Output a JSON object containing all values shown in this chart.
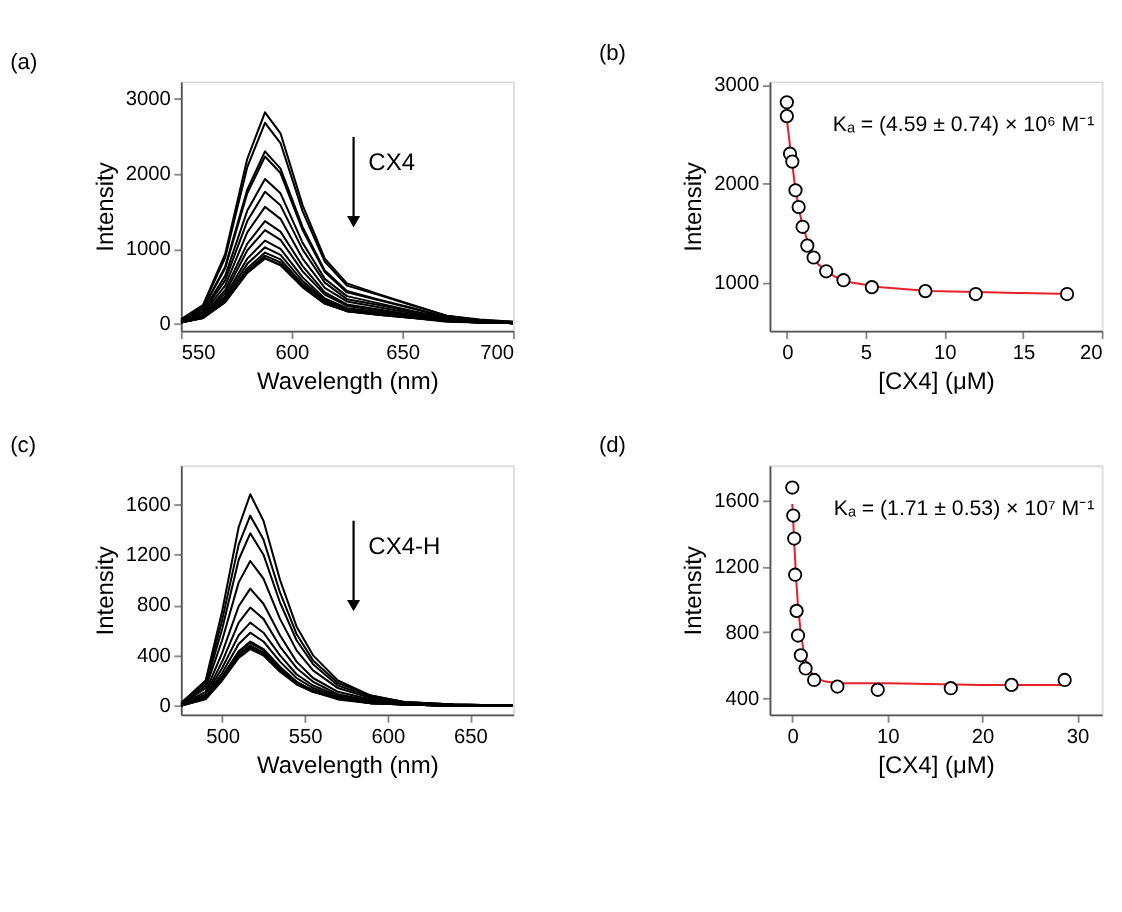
{
  "chart_data": [
    {
      "type": "line",
      "title": "(a)",
      "xlabel": "Wavelength (nm)",
      "ylabel": "Intensity",
      "xlim": [
        550,
        700
      ],
      "ylim": [
        -90,
        3230
      ],
      "xticks": [
        550,
        600,
        650,
        700
      ],
      "yticks": [
        0,
        1000,
        2000,
        3000
      ],
      "x": [
        550,
        560,
        570,
        580,
        588,
        595,
        605,
        615,
        625,
        640,
        655,
        670,
        685,
        700
      ],
      "series": [
        {
          "color": "#000000",
          "values": [
            60,
            250,
            930,
            2200,
            2820,
            2540,
            1580,
            870,
            540,
            390,
            250,
            110,
            60,
            30
          ]
        },
        {
          "color": "#000000",
          "values": [
            50,
            240,
            880,
            2090,
            2680,
            2410,
            1500,
            830,
            510,
            380,
            240,
            110,
            50,
            30
          ]
        },
        {
          "color": "#000000",
          "values": [
            50,
            210,
            760,
            1790,
            2300,
            2070,
            1290,
            710,
            440,
            320,
            210,
            90,
            50,
            20
          ]
        },
        {
          "color": "#000000",
          "values": [
            40,
            200,
            740,
            1740,
            2230,
            2010,
            1250,
            690,
            420,
            310,
            200,
            90,
            40,
            20
          ]
        },
        {
          "color": "#000000",
          "values": [
            40,
            170,
            640,
            1510,
            1930,
            1740,
            1080,
            600,
            370,
            270,
            170,
            80,
            40,
            20
          ]
        },
        {
          "color": "#000000",
          "values": [
            40,
            160,
            580,
            1370,
            1760,
            1580,
            990,
            550,
            330,
            250,
            160,
            70,
            40,
            20
          ]
        },
        {
          "color": "#000000",
          "values": [
            30,
            140,
            510,
            1220,
            1560,
            1400,
            870,
            480,
            300,
            220,
            140,
            60,
            30,
            20
          ]
        },
        {
          "color": "#000000",
          "values": [
            30,
            120,
            450,
            1070,
            1370,
            1230,
            770,
            420,
            260,
            190,
            120,
            50,
            30,
            10
          ]
        },
        {
          "color": "#000000",
          "values": [
            30,
            110,
            410,
            980,
            1250,
            1120,
            700,
            390,
            240,
            180,
            110,
            50,
            30,
            10
          ]
        },
        {
          "color": "#000000",
          "values": [
            20,
            100,
            370,
            870,
            1110,
            1000,
            620,
            340,
            210,
            160,
            100,
            40,
            20,
            10
          ]
        },
        {
          "color": "#000000",
          "values": [
            20,
            90,
            340,
            800,
            1020,
            920,
            570,
            320,
            190,
            140,
            90,
            40,
            20,
            10
          ]
        },
        {
          "color": "#000000",
          "values": [
            20,
            90,
            310,
            740,
            950,
            860,
            530,
            300,
            180,
            130,
            90,
            40,
            20,
            10
          ]
        },
        {
          "color": "#000000",
          "values": [
            20,
            80,
            300,
            710,
            910,
            820,
            510,
            280,
            170,
            130,
            80,
            40,
            20,
            10
          ]
        },
        {
          "color": "#000000",
          "values": [
            20,
            80,
            290,
            690,
            880,
            790,
            490,
            270,
            170,
            120,
            80,
            40,
            20,
            10
          ]
        },
        {
          "color": "#000000",
          "values": [
            20,
            80,
            290,
            680,
            870,
            780,
            490,
            270,
            170,
            120,
            80,
            30,
            20,
            10
          ]
        }
      ],
      "annotations": [
        "CX4"
      ]
    },
    {
      "type": "scatter",
      "title": "(b)",
      "xlabel": "[CX4] (μM)",
      "ylabel": "Intensity",
      "xlim": [
        -1.1,
        20
      ],
      "ylim": [
        510,
        3030
      ],
      "xticks": [
        0,
        5,
        10,
        15,
        20
      ],
      "yticks": [
        1000,
        2000,
        3000
      ],
      "marker": "circle",
      "x": [
        0,
        0,
        0.2,
        0.35,
        0.55,
        0.75,
        1.0,
        1.3,
        1.7,
        2.5,
        3.6,
        5.4,
        8.8,
        12,
        17.8
      ],
      "series": [
        {
          "type": "line",
          "marker": "none",
          "color": "#e8202a",
          "x": [
            0,
            0.25,
            0.5,
            0.75,
            1,
            1.5,
            2,
            3,
            4,
            6,
            9,
            12,
            15,
            18
          ],
          "values": [
            2650,
            2310,
            2000,
            1760,
            1570,
            1330,
            1180,
            1060,
            1000,
            950,
            910,
            900,
            890,
            880
          ]
        },
        {
          "color": "#000000",
          "values": [
            2820,
            2680,
            2300,
            2220,
            1930,
            1760,
            1560,
            1370,
            1250,
            1110,
            1020,
            950,
            910,
            880,
            880
          ]
        }
      ],
      "annotations": [
        "Kₐ = (4.59 ± 0.74) × 10⁶ M⁻¹"
      ]
    },
    {
      "type": "line",
      "title": "(c)",
      "xlabel": "Wavelength (nm)",
      "ylabel": "Intensity",
      "xlim": [
        475,
        676
      ],
      "ylim": [
        -70,
        1910
      ],
      "xticks": [
        500,
        550,
        600,
        650
      ],
      "yticks": [
        0,
        400,
        800,
        1200,
        1600
      ],
      "x": [
        475,
        490,
        500,
        510,
        517,
        525,
        535,
        545,
        555,
        570,
        590,
        610,
        640,
        676
      ],
      "series": [
        {
          "color": "#000000",
          "values": [
            20,
            200,
            750,
            1420,
            1680,
            1470,
            1000,
            630,
            400,
            200,
            80,
            30,
            10,
            0
          ]
        },
        {
          "color": "#000000",
          "values": [
            20,
            180,
            680,
            1280,
            1510,
            1320,
            900,
            570,
            360,
            180,
            80,
            30,
            10,
            0
          ]
        },
        {
          "color": "#000000",
          "values": [
            10,
            160,
            610,
            1160,
            1370,
            1200,
            820,
            520,
            330,
            160,
            70,
            30,
            10,
            0
          ]
        },
        {
          "color": "#000000",
          "values": [
            10,
            140,
            520,
            980,
            1150,
            1010,
            690,
            440,
            280,
            140,
            60,
            20,
            10,
            0
          ]
        },
        {
          "color": "#000000",
          "values": [
            10,
            110,
            420,
            790,
            930,
            810,
            560,
            350,
            220,
            110,
            50,
            20,
            0,
            0
          ]
        },
        {
          "color": "#000000",
          "values": [
            10,
            90,
            350,
            660,
            780,
            690,
            470,
            300,
            190,
            90,
            40,
            20,
            0,
            0
          ]
        },
        {
          "color": "#000000",
          "values": [
            10,
            80,
            300,
            560,
            660,
            580,
            400,
            250,
            160,
            80,
            30,
            10,
            0,
            0
          ]
        },
        {
          "color": "#000000",
          "values": [
            10,
            70,
            260,
            490,
            580,
            510,
            350,
            220,
            140,
            70,
            30,
            10,
            0,
            0
          ]
        },
        {
          "color": "#000000",
          "values": [
            10,
            60,
            230,
            430,
            510,
            450,
            310,
            190,
            120,
            60,
            30,
            10,
            0,
            0
          ]
        },
        {
          "color": "#000000",
          "values": [
            10,
            60,
            230,
            430,
            500,
            440,
            300,
            190,
            120,
            60,
            30,
            10,
            0,
            0
          ]
        },
        {
          "color": "#000000",
          "values": [
            0,
            60,
            220,
            410,
            480,
            420,
            290,
            180,
            120,
            60,
            20,
            10,
            0,
            0
          ]
        },
        {
          "color": "#000000",
          "values": [
            0,
            60,
            210,
            400,
            470,
            420,
            290,
            180,
            110,
            60,
            20,
            10,
            0,
            0
          ]
        },
        {
          "color": "#000000",
          "values": [
            0,
            60,
            210,
            390,
            460,
            400,
            280,
            170,
            110,
            60,
            20,
            10,
            0,
            0
          ]
        },
        {
          "color": "#000000",
          "values": [
            0,
            50,
            200,
            380,
            450,
            400,
            270,
            170,
            110,
            50,
            20,
            10,
            0,
            0
          ]
        }
      ],
      "annotations": [
        "CX4-H"
      ]
    },
    {
      "type": "scatter",
      "title": "(d)",
      "xlabel": "[CX4] (μM)",
      "ylabel": "Intensity",
      "xlim": [
        -2.4,
        32.6
      ],
      "ylim": [
        300,
        1815
      ],
      "xticks": [
        0,
        10,
        20,
        30
      ],
      "yticks": [
        400,
        800,
        1200,
        1600
      ],
      "marker": "circle",
      "x": [
        0,
        0.1,
        0.2,
        0.3,
        0.45,
        0.6,
        0.9,
        1.4,
        2.3,
        4.75,
        9.0,
        16.7,
        23.1,
        28.7
      ],
      "series": [
        {
          "type": "line",
          "marker": "none",
          "color": "#e8202a",
          "x": [
            0,
            0.1,
            0.2,
            0.4,
            0.6,
            0.9,
            1.3,
            1.8,
            2.5,
            3.5,
            5,
            10,
            20,
            28.5
          ],
          "values": [
            1580,
            1470,
            1350,
            1130,
            960,
            790,
            650,
            570,
            520,
            500,
            490,
            490,
            480,
            480
          ]
        },
        {
          "color": "#000000",
          "values": [
            1680,
            1510,
            1370,
            1150,
            930,
            780,
            660,
            580,
            510,
            470,
            450,
            460,
            480,
            510
          ]
        }
      ],
      "annotations": [
        "Kₐ = (1.71 ± 0.53) × 10⁷ M⁻¹"
      ]
    }
  ]
}
